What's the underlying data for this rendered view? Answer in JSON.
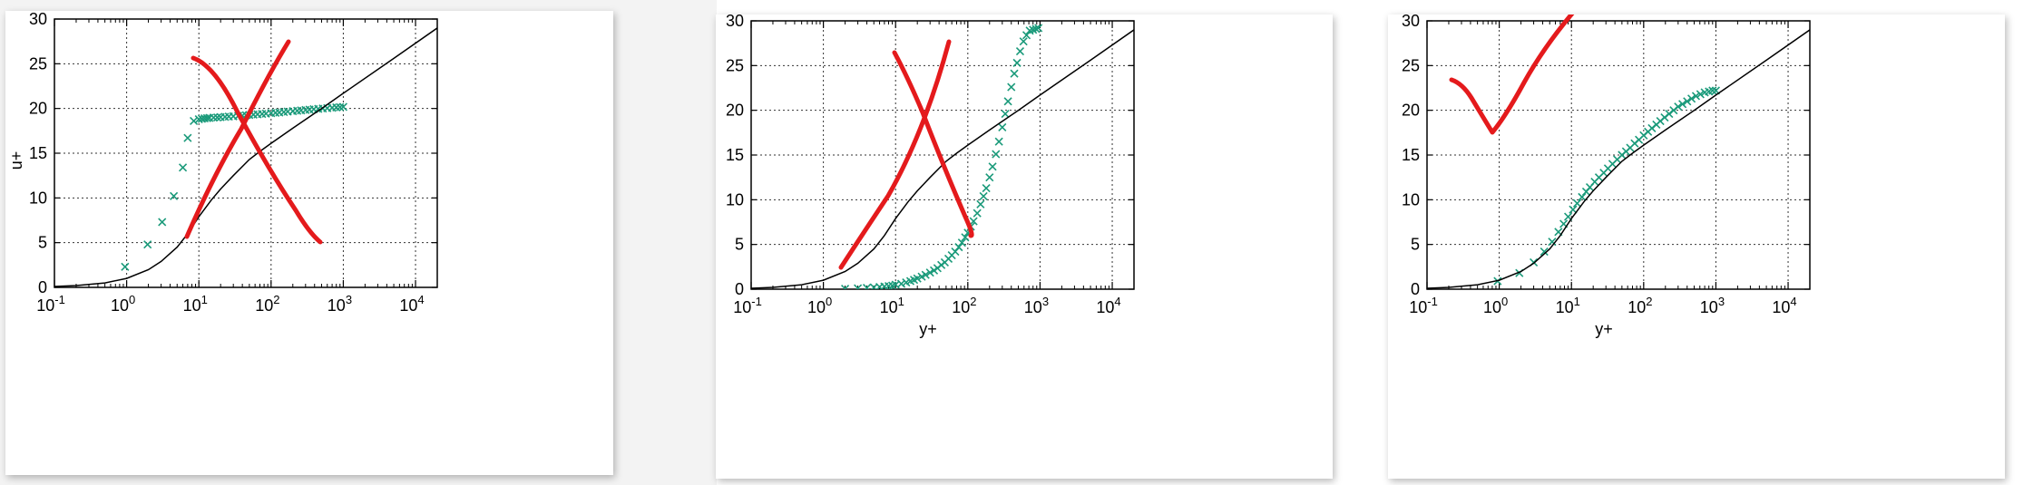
{
  "chart_data": [
    {
      "type": "scatter",
      "xlabel": "",
      "ylabel": "u+",
      "xscale": "log",
      "xlim": [
        0.1,
        20000
      ],
      "ylim": [
        0,
        30
      ],
      "grid": true,
      "x_ticks": [
        "10-1",
        "100",
        "101",
        "102",
        "103",
        "104"
      ],
      "y_ticks": [
        "0",
        "5",
        "10",
        "15",
        "20",
        "25",
        "30"
      ],
      "series": [
        {
          "marker": "x",
          "color": "#1a9a7a",
          "x": [
            0.95,
            1.95,
            3.1,
            4.5,
            6.0,
            7.0,
            8.5,
            10,
            11,
            12,
            13,
            14,
            16,
            18,
            20,
            23,
            26,
            30,
            35,
            40,
            45,
            50,
            57,
            65,
            75,
            85,
            100,
            115,
            130,
            150,
            170,
            200,
            230,
            260,
            300,
            340,
            390,
            450,
            520,
            600,
            700,
            800,
            900,
            1000
          ],
          "y": [
            2.3,
            4.8,
            7.3,
            10.2,
            13.4,
            16.7,
            18.6,
            18.8,
            18.85,
            18.9,
            18.92,
            18.95,
            18.98,
            19.0,
            19.03,
            19.06,
            19.1,
            19.13,
            19.17,
            19.2,
            19.24,
            19.27,
            19.31,
            19.35,
            19.39,
            19.43,
            19.48,
            19.52,
            19.56,
            19.61,
            19.65,
            19.7,
            19.74,
            19.78,
            19.83,
            19.87,
            19.92,
            19.96,
            20.0,
            20.04,
            20.08,
            20.12,
            20.15,
            20.18
          ]
        },
        {
          "marker": "line",
          "color": "#000000",
          "x": [
            0.1,
            0.2,
            0.5,
            1,
            2,
            3,
            5,
            7,
            10,
            15,
            20,
            30,
            50,
            70,
            100,
            200,
            500,
            1000,
            5000,
            20000
          ],
          "y": [
            0.1,
            0.2,
            0.5,
            1.0,
            1.98,
            2.9,
            4.5,
            6.0,
            7.9,
            9.8,
            11.0,
            12.5,
            14.3,
            15.2,
            16.1,
            17.8,
            20.0,
            21.7,
            25.6,
            29.0
          ]
        }
      ]
    },
    {
      "type": "scatter",
      "xlabel": "y+",
      "ylabel": "",
      "xscale": "log",
      "xlim": [
        0.1,
        20000
      ],
      "ylim": [
        0,
        30
      ],
      "grid": true,
      "x_ticks": [
        "10-1",
        "100",
        "101",
        "102",
        "103",
        "104"
      ],
      "y_ticks": [
        "0",
        "5",
        "10",
        "15",
        "20",
        "25",
        "30"
      ],
      "series": [
        {
          "marker": "x",
          "color": "#1a9a7a",
          "x": [
            2,
            3,
            4,
            5,
            6,
            7,
            8,
            9,
            10,
            12,
            14,
            16,
            18,
            20,
            23,
            26,
            30,
            34,
            38,
            43,
            48,
            54,
            60,
            67,
            75,
            83,
            92,
            100,
            110,
            120,
            135,
            150,
            165,
            180,
            200,
            220,
            245,
            270,
            300,
            330,
            360,
            400,
            440,
            480,
            530,
            590,
            650,
            720,
            800,
            880,
            950
          ],
          "y": [
            0.05,
            0.1,
            0.15,
            0.2,
            0.25,
            0.3,
            0.35,
            0.4,
            0.5,
            0.6,
            0.75,
            0.9,
            1.05,
            1.2,
            1.4,
            1.6,
            1.85,
            2.1,
            2.35,
            2.7,
            3.0,
            3.4,
            3.8,
            4.2,
            4.7,
            5.2,
            5.8,
            6.3,
            7.0,
            7.6,
            8.5,
            9.5,
            10.4,
            11.3,
            12.5,
            13.7,
            15.1,
            16.5,
            18.1,
            19.6,
            21.0,
            22.6,
            24.1,
            25.3,
            26.6,
            27.7,
            28.4,
            28.9,
            29.0,
            29.1,
            29.2
          ]
        },
        {
          "marker": "line",
          "color": "#000000",
          "x": [
            0.1,
            0.2,
            0.5,
            1,
            2,
            3,
            5,
            7,
            10,
            15,
            20,
            30,
            50,
            70,
            100,
            200,
            500,
            1000,
            5000,
            20000
          ],
          "y": [
            0.1,
            0.2,
            0.5,
            1.0,
            1.98,
            2.9,
            4.5,
            6.0,
            7.9,
            9.8,
            11.0,
            12.5,
            14.3,
            15.2,
            16.1,
            17.8,
            20.0,
            21.7,
            25.6,
            29.0
          ]
        }
      ]
    },
    {
      "type": "scatter",
      "xlabel": "y+",
      "ylabel": "",
      "xscale": "log",
      "xlim": [
        0.1,
        20000
      ],
      "ylim": [
        0,
        30
      ],
      "grid": true,
      "x_ticks": [
        "10-1",
        "100",
        "101",
        "102",
        "103",
        "104"
      ],
      "y_ticks": [
        "0",
        "5",
        "10",
        "15",
        "20",
        "25",
        "30"
      ],
      "series": [
        {
          "marker": "x",
          "color": "#1a9a7a",
          "x": [
            0.95,
            1.9,
            3.0,
            4.2,
            5.4,
            6.6,
            7.8,
            9.0,
            10.5,
            12,
            14,
            16,
            18,
            21,
            24,
            28,
            32,
            37,
            43,
            50,
            57,
            65,
            75,
            86,
            100,
            115,
            130,
            150,
            170,
            195,
            225,
            260,
            300,
            345,
            400,
            460,
            530,
            610,
            700,
            800,
            900,
            1000
          ],
          "y": [
            0.9,
            1.8,
            3.0,
            4.2,
            5.3,
            6.4,
            7.3,
            8.1,
            8.9,
            9.6,
            10.3,
            10.9,
            11.4,
            12.0,
            12.5,
            13.0,
            13.5,
            14.0,
            14.5,
            15.0,
            15.4,
            15.8,
            16.3,
            16.7,
            17.2,
            17.6,
            18.0,
            18.4,
            18.8,
            19.2,
            19.6,
            20.0,
            20.4,
            20.7,
            21.0,
            21.3,
            21.6,
            21.8,
            22.0,
            22.1,
            22.2,
            22.2
          ]
        },
        {
          "marker": "line",
          "color": "#000000",
          "x": [
            0.1,
            0.2,
            0.5,
            1,
            2,
            3,
            5,
            7,
            10,
            15,
            20,
            30,
            50,
            70,
            100,
            200,
            500,
            1000,
            5000,
            20000
          ],
          "y": [
            0.1,
            0.2,
            0.5,
            1.0,
            1.98,
            2.9,
            4.5,
            6.0,
            7.9,
            9.8,
            11.0,
            12.5,
            14.3,
            15.2,
            16.1,
            17.8,
            20.0,
            21.7,
            25.6,
            29.0
          ]
        }
      ]
    }
  ],
  "annotations": {
    "color": "#e41a1c",
    "panel_1": "red cross mark",
    "panel_2": "red cross mark",
    "panel_3": "red check mark"
  }
}
